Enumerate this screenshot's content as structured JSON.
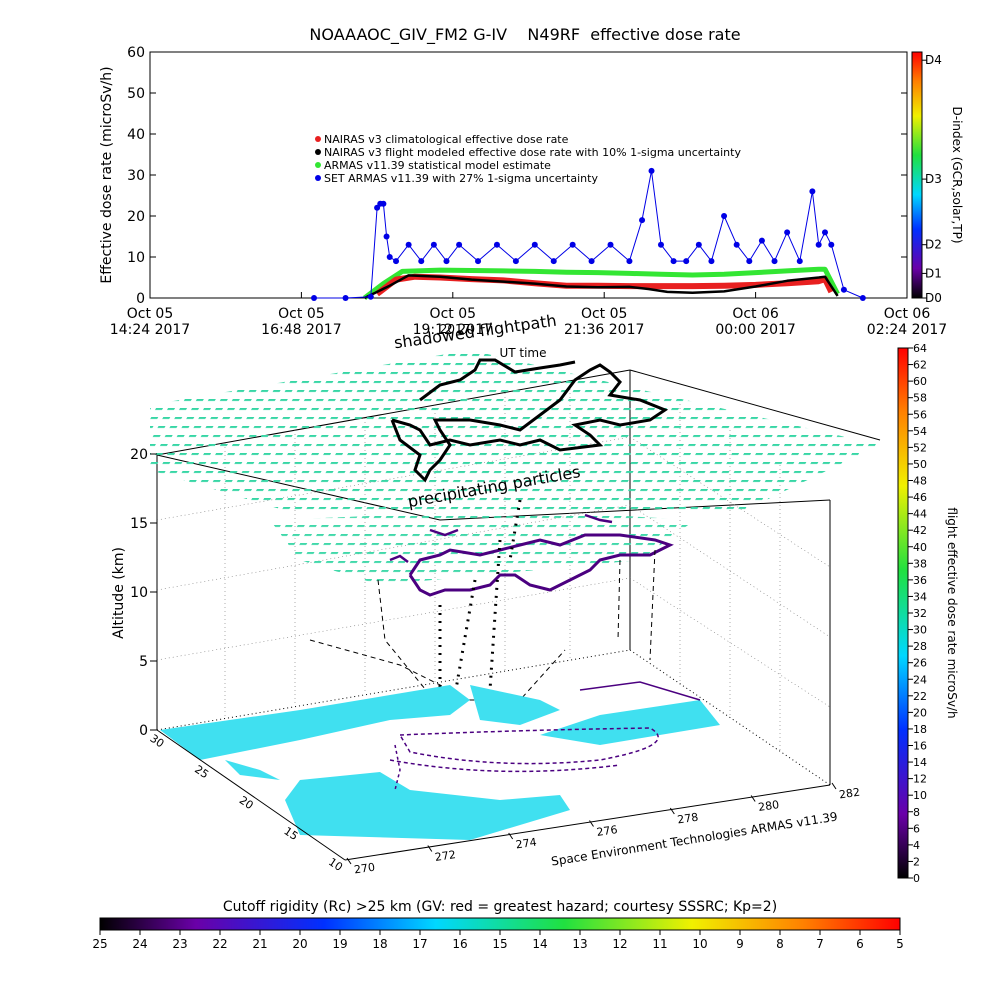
{
  "colors": {
    "nairas_clim": "#e82020",
    "nairas_flight": "#000000",
    "armas_model": "#33e633",
    "set_armas": "#0000e6",
    "water": "#40e0f0"
  },
  "chart_data": [
    {
      "type": "line",
      "title": "NOAAAOC_GIV_FM2 G-IV    N49RF  effective dose rate",
      "ylabel": "Effective dose rate (microSv/h)",
      "xlabel": "UT time",
      "ylim": [
        0,
        60
      ],
      "yticks": [
        "0",
        "10",
        "20",
        "30",
        "40",
        "50",
        "60"
      ],
      "xlim_hours": [
        14.4,
        26.4
      ],
      "xticks": [
        {
          "h": 14.4,
          "line1": "Oct 05",
          "line2": "14:24 2017"
        },
        {
          "h": 16.8,
          "line1": "Oct 05",
          "line2": "16:48 2017"
        },
        {
          "h": 19.2,
          "line1": "Oct 05",
          "line2": "19:12 2017"
        },
        {
          "h": 21.6,
          "line1": "Oct 05",
          "line2": "21:36 2017"
        },
        {
          "h": 24.0,
          "line1": "Oct 06",
          "line2": "00:00 2017"
        },
        {
          "h": 26.4,
          "line1": "Oct 06",
          "line2": "02:24 2017"
        }
      ],
      "legend": [
        {
          "label": "NAIRAS v3 climatological effective dose rate"
        },
        {
          "label": "NAIRAS v3 flight modeled effective dose rate with 10% 1-sigma uncertainty"
        },
        {
          "label": "ARMAS v11.39 statistical model estimate"
        },
        {
          "label": "SET ARMAS v11.39 with 27% 1-sigma uncertainty"
        }
      ],
      "legend_position": "upper-left",
      "dindex": {
        "label": "D-index (GCR,solar,TP)",
        "ticks": [
          {
            "label": "D0",
            "v": 0
          },
          {
            "label": "D1",
            "v": 6
          },
          {
            "label": "D2",
            "v": 13
          },
          {
            "label": "D3",
            "v": 29
          },
          {
            "label": "D4",
            "v": 58
          }
        ]
      },
      "series": {
        "nairas_clim": {
          "x": [
            18.0,
            18.3,
            18.6,
            19.0,
            19.5,
            20.0,
            20.5,
            21.0,
            21.5,
            22.0,
            22.5,
            23.0,
            23.5,
            24.0,
            24.5,
            25.0,
            25.1,
            25.2
          ],
          "y": [
            1,
            4.5,
            5.2,
            5,
            4.6,
            4.3,
            3.6,
            3.0,
            3.0,
            2.9,
            2.9,
            2.9,
            3.0,
            3.2,
            3.6,
            4.1,
            4.6,
            1.5
          ]
        },
        "nairas_flight": {
          "x": [
            17.8,
            18.2,
            18.5,
            19.0,
            19.5,
            20.0,
            20.5,
            21.0,
            21.5,
            22.0,
            22.3,
            22.6,
            23.0,
            23.5,
            24.0,
            24.5,
            25.0,
            25.1,
            25.3
          ],
          "y": [
            0,
            3,
            5.5,
            5.2,
            4.5,
            4.0,
            3.5,
            2.8,
            2.6,
            2.7,
            2.2,
            1.5,
            1.3,
            1.6,
            2.8,
            4.2,
            5.0,
            5.2,
            0.5
          ]
        },
        "armas_model": {
          "x": [
            17.8,
            18.1,
            18.4,
            19.0,
            19.5,
            20.0,
            20.5,
            21.0,
            21.5,
            22.0,
            22.5,
            23.0,
            23.5,
            24.0,
            24.5,
            25.0,
            25.1,
            25.3
          ],
          "y": [
            0,
            3.5,
            6.5,
            6.8,
            6.7,
            6.6,
            6.5,
            6.3,
            6.2,
            6.0,
            5.8,
            5.6,
            5.8,
            6.2,
            6.6,
            7.0,
            7.0,
            1.0
          ]
        },
        "set_armas": {
          "x": [
            17.0,
            17.5,
            17.9,
            18.0,
            18.05,
            18.1,
            18.15,
            18.2,
            18.3,
            18.5,
            18.7,
            18.9,
            19.1,
            19.3,
            19.6,
            19.9,
            20.2,
            20.5,
            20.8,
            21.1,
            21.4,
            21.7,
            22.0,
            22.2,
            22.35,
            22.5,
            22.7,
            22.9,
            23.1,
            23.3,
            23.5,
            23.7,
            23.9,
            24.1,
            24.3,
            24.5,
            24.7,
            24.9,
            25.0,
            25.1,
            25.2,
            25.4,
            25.7
          ],
          "y": [
            0,
            0,
            0.3,
            22,
            23,
            23,
            15,
            10,
            9,
            13,
            9,
            13,
            9,
            13,
            9,
            13,
            9,
            13,
            9,
            13,
            9,
            13,
            9,
            19,
            31,
            13,
            9,
            9,
            13,
            9,
            20,
            13,
            9,
            14,
            9,
            16,
            9,
            26,
            13,
            16,
            13,
            2,
            0
          ]
        }
      }
    },
    {
      "type": "3d-map",
      "xlabel": "Space Environment Technologies ARMAS v11.39",
      "ylabel": "Altitude (km)",
      "zticks": [
        "0",
        "5",
        "10",
        "15",
        "20"
      ],
      "lon_ticks": [
        "270",
        "272",
        "274",
        "276",
        "278",
        "280",
        "282"
      ],
      "lat_ticks": [
        "10",
        "15",
        "20",
        "25",
        "30"
      ],
      "annotations": [
        "shadowed flightpath",
        "2017",
        "UT time",
        "precipitating particles"
      ]
    },
    {
      "type": "colorbar",
      "label": "flight effective dose rate microSv/h",
      "ticks": [
        "0",
        "2",
        "4",
        "6",
        "8",
        "10",
        "12",
        "14",
        "16",
        "18",
        "20",
        "22",
        "24",
        "26",
        "28",
        "30",
        "32",
        "34",
        "36",
        "38",
        "40",
        "42",
        "44",
        "46",
        "48",
        "50",
        "52",
        "54",
        "56",
        "58",
        "60",
        "62",
        "64"
      ]
    },
    {
      "type": "colorbar",
      "label": "Cutoff rigidity (Rc) >25 km (GV: red = greatest hazard; courtesy SSSRC; Kp=2)",
      "ticks": [
        "25",
        "24",
        "23",
        "22",
        "21",
        "20",
        "19",
        "18",
        "17",
        "16",
        "15",
        "14",
        "13",
        "12",
        "11",
        "10",
        "9",
        "8",
        "7",
        "6",
        "5"
      ]
    }
  ]
}
